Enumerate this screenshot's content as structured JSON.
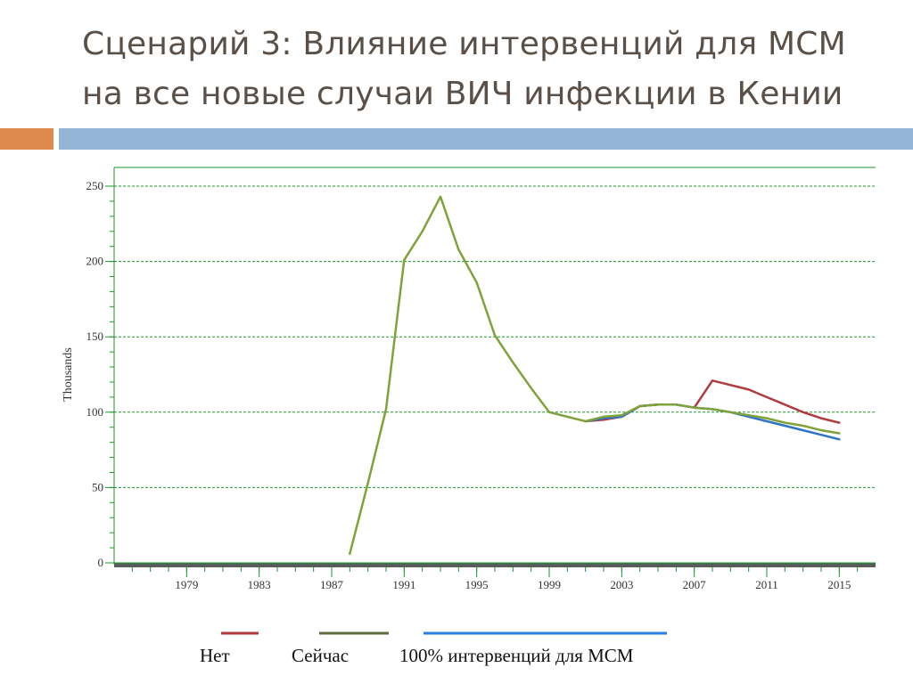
{
  "title": {
    "line1": "Сценарий 3: Влияние интервенций для МСМ",
    "line2": "на все новые случаи ВИЧ инфекции в Кении"
  },
  "colors": {
    "title": "#5b5047",
    "accent_orange": "#de8a4f",
    "accent_blue": "#93b6d6",
    "grid": "#1a9a2a",
    "axis_line": "#555e5a",
    "series_none": "#b03a3e",
    "series_current": "#7fa33a",
    "series_current_legend": "#5d6b3e",
    "series_100": "#2f74c4",
    "series_100_legend": "#2a7de1"
  },
  "chart_data": {
    "type": "line",
    "ylabel": "Thousands",
    "xlabel": "",
    "xlim": [
      1975,
      2017
    ],
    "ylim": [
      0,
      250
    ],
    "yticks": [
      0,
      50,
      100,
      150,
      200,
      250
    ],
    "xticks": [
      1979,
      1983,
      1987,
      1991,
      1995,
      1999,
      2003,
      2007,
      2011,
      2015
    ],
    "grid": true,
    "legend_position": "bottom",
    "series": [
      {
        "name": "Нет",
        "color_key": "series_none",
        "x": [
          2001,
          2002,
          2003,
          2004,
          2005,
          2006,
          2007,
          2008,
          2009,
          2010,
          2011,
          2012,
          2013,
          2014,
          2015
        ],
        "y": [
          94,
          95,
          97,
          104,
          105,
          105,
          103,
          121,
          118,
          115,
          110,
          105,
          100,
          96,
          93
        ]
      },
      {
        "name": "Сейчас",
        "color_key": "series_current",
        "x": [
          1988,
          1989,
          1990,
          1991,
          1992,
          1993,
          1994,
          1995,
          1996,
          1997,
          1998,
          1999,
          2000,
          2001,
          2002,
          2003,
          2004,
          2005,
          2006,
          2007,
          2008,
          2009,
          2010,
          2011,
          2012,
          2013,
          2014,
          2015
        ],
        "y": [
          6,
          53,
          102,
          201,
          220,
          243,
          208,
          186,
          151,
          133,
          116,
          100,
          97,
          94,
          97,
          98,
          104,
          105,
          105,
          103,
          102,
          100,
          98,
          96,
          93,
          91,
          88,
          86
        ]
      },
      {
        "name": "100% интервенций для МСМ",
        "color_key": "series_100",
        "x": [
          2001,
          2002,
          2003,
          2004,
          2005,
          2006,
          2007,
          2008,
          2009,
          2010,
          2011,
          2012,
          2013,
          2014,
          2015
        ],
        "y": [
          94,
          96,
          97,
          104,
          105,
          105,
          103,
          102,
          100,
          97,
          94,
          91,
          88,
          85,
          82
        ]
      }
    ]
  }
}
